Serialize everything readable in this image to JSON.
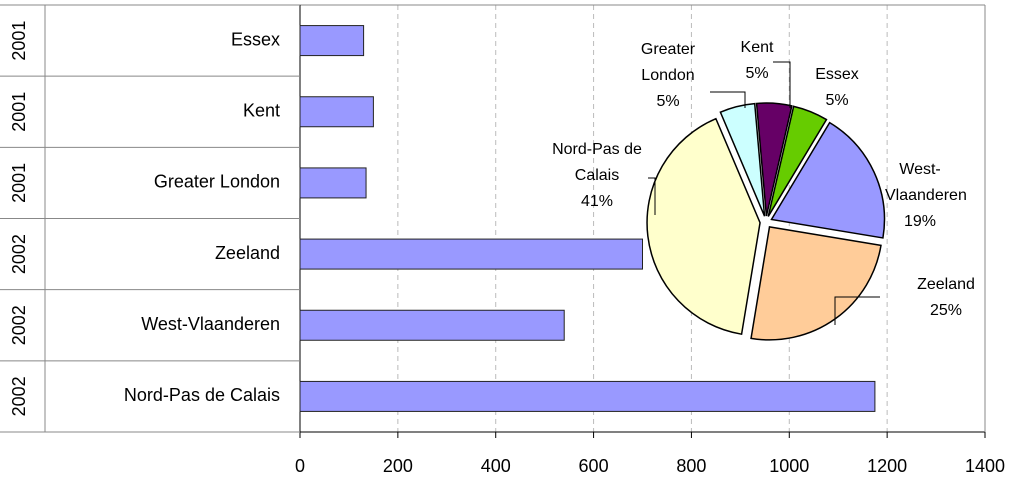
{
  "chart_data": [
    {
      "type": "bar",
      "orientation": "horizontal",
      "categories": [
        "Essex",
        "Kent",
        "Greater London",
        "Zeeland",
        "West-Vlaanderen",
        "Nord-Pas de Calais"
      ],
      "category_groups": [
        "2001",
        "2001",
        "2001",
        "2002",
        "2002",
        "2002"
      ],
      "values": [
        130,
        150,
        135,
        700,
        540,
        1175
      ],
      "color": "#9999ff",
      "xlim": [
        0,
        1400
      ],
      "xticks": [
        0,
        200,
        400,
        600,
        800,
        1000,
        1200,
        1400
      ],
      "grid": true
    },
    {
      "type": "pie",
      "categories": [
        "Kent",
        "Essex",
        "West-Vlaanderen",
        "Zeeland",
        "Nord-Pas de Calais",
        "Greater London"
      ],
      "values": [
        5,
        5,
        19,
        25,
        41,
        5
      ],
      "value_labels": [
        "5%",
        "5%",
        "19%",
        "25%",
        "41%",
        "5%"
      ],
      "colors": [
        "#660066",
        "#66cc00",
        "#9999ff",
        "#ffcc99",
        "#ffffcc",
        "#ccffff"
      ]
    }
  ]
}
